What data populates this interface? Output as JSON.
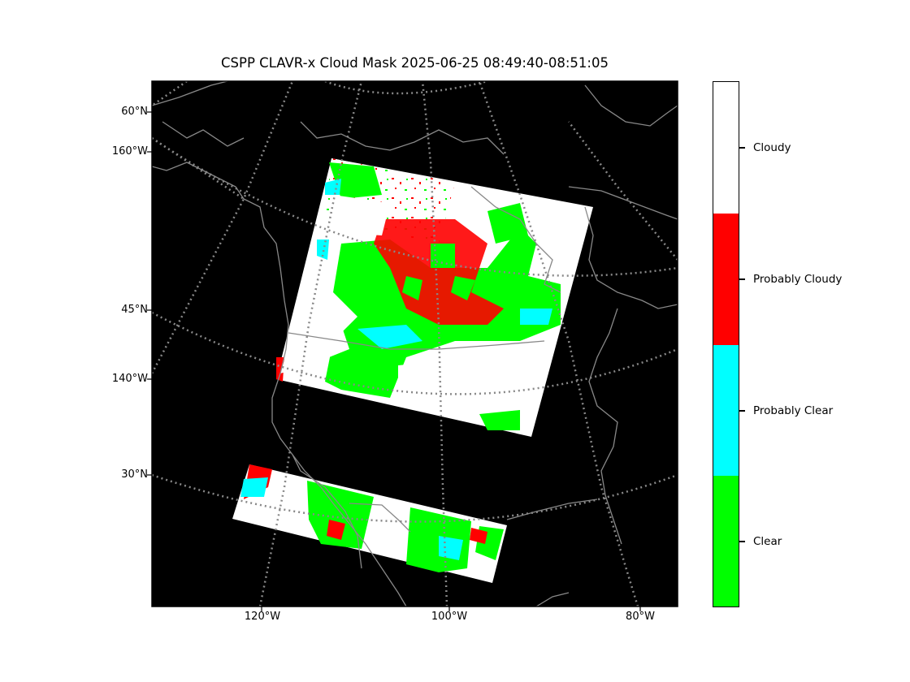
{
  "title": "CSPP CLAVR-x Cloud Mask 2025-06-25 08:49:40-08:51:05",
  "map": {
    "background": "#000000",
    "coastline_color": "#888888",
    "lat_labels": [
      "60°N",
      "160°W",
      "45°N",
      "140°W",
      "30°N"
    ],
    "lon_labels": [
      "120°W",
      "100°W",
      "80°W"
    ]
  },
  "legend": {
    "categories": [
      {
        "label": "Cloudy",
        "color": "#ffffff"
      },
      {
        "label": "Probably Cloudy",
        "color": "#ff0000"
      },
      {
        "label": "Probably Clear",
        "color": "#00ffff"
      },
      {
        "label": "Clear",
        "color": "#00ff00"
      }
    ]
  }
}
